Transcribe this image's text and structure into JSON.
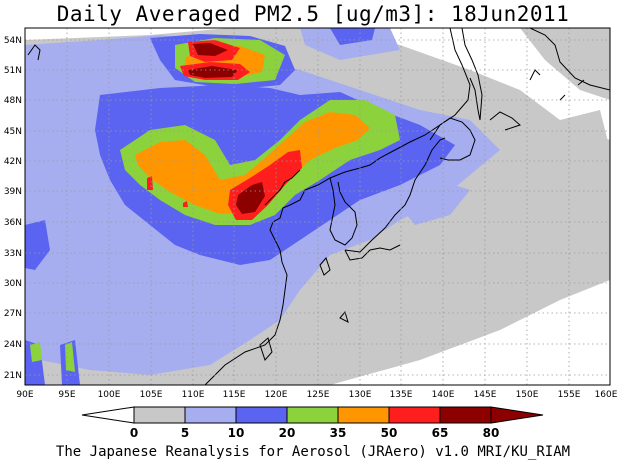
{
  "title": "Daily Averaged PM2.5 [ug/m3]: 18Jun2011",
  "credit": "The Japanese Reanalysis for Aerosol (JRAero) v1.0 MRI/KU_RIAM",
  "map": {
    "lon_range": [
      90,
      160
    ],
    "lat_range": [
      20,
      55
    ],
    "x_ticks": [
      "90E",
      "95E",
      "100E",
      "105E",
      "110E",
      "115E",
      "120E",
      "125E",
      "130E",
      "135E",
      "140E",
      "145E",
      "150E",
      "155E",
      "160E"
    ],
    "y_ticks": [
      "21N",
      "24N",
      "27N",
      "30N",
      "33N",
      "36N",
      "39N",
      "42N",
      "45N",
      "48N",
      "51N",
      "54N"
    ],
    "grid": true
  },
  "colorbar": {
    "labels": [
      "0",
      "5",
      "10",
      "20",
      "35",
      "50",
      "65",
      "80"
    ],
    "colors": [
      "#ffffff",
      "#c8c8c8",
      "#a6aef0",
      "#5a64f0",
      "#8cd23c",
      "#ff9600",
      "#ff1e1e",
      "#8c0000"
    ]
  },
  "colors": {
    "level1": "#c8c8c8",
    "level2": "#a6aef0",
    "level3": "#5a64f0",
    "level4": "#8cd23c",
    "level5": "#ff9600",
    "level6": "#ff1e1e",
    "level7": "#8c0000",
    "grid": "#9a9a9a",
    "coast": "#000000"
  }
}
